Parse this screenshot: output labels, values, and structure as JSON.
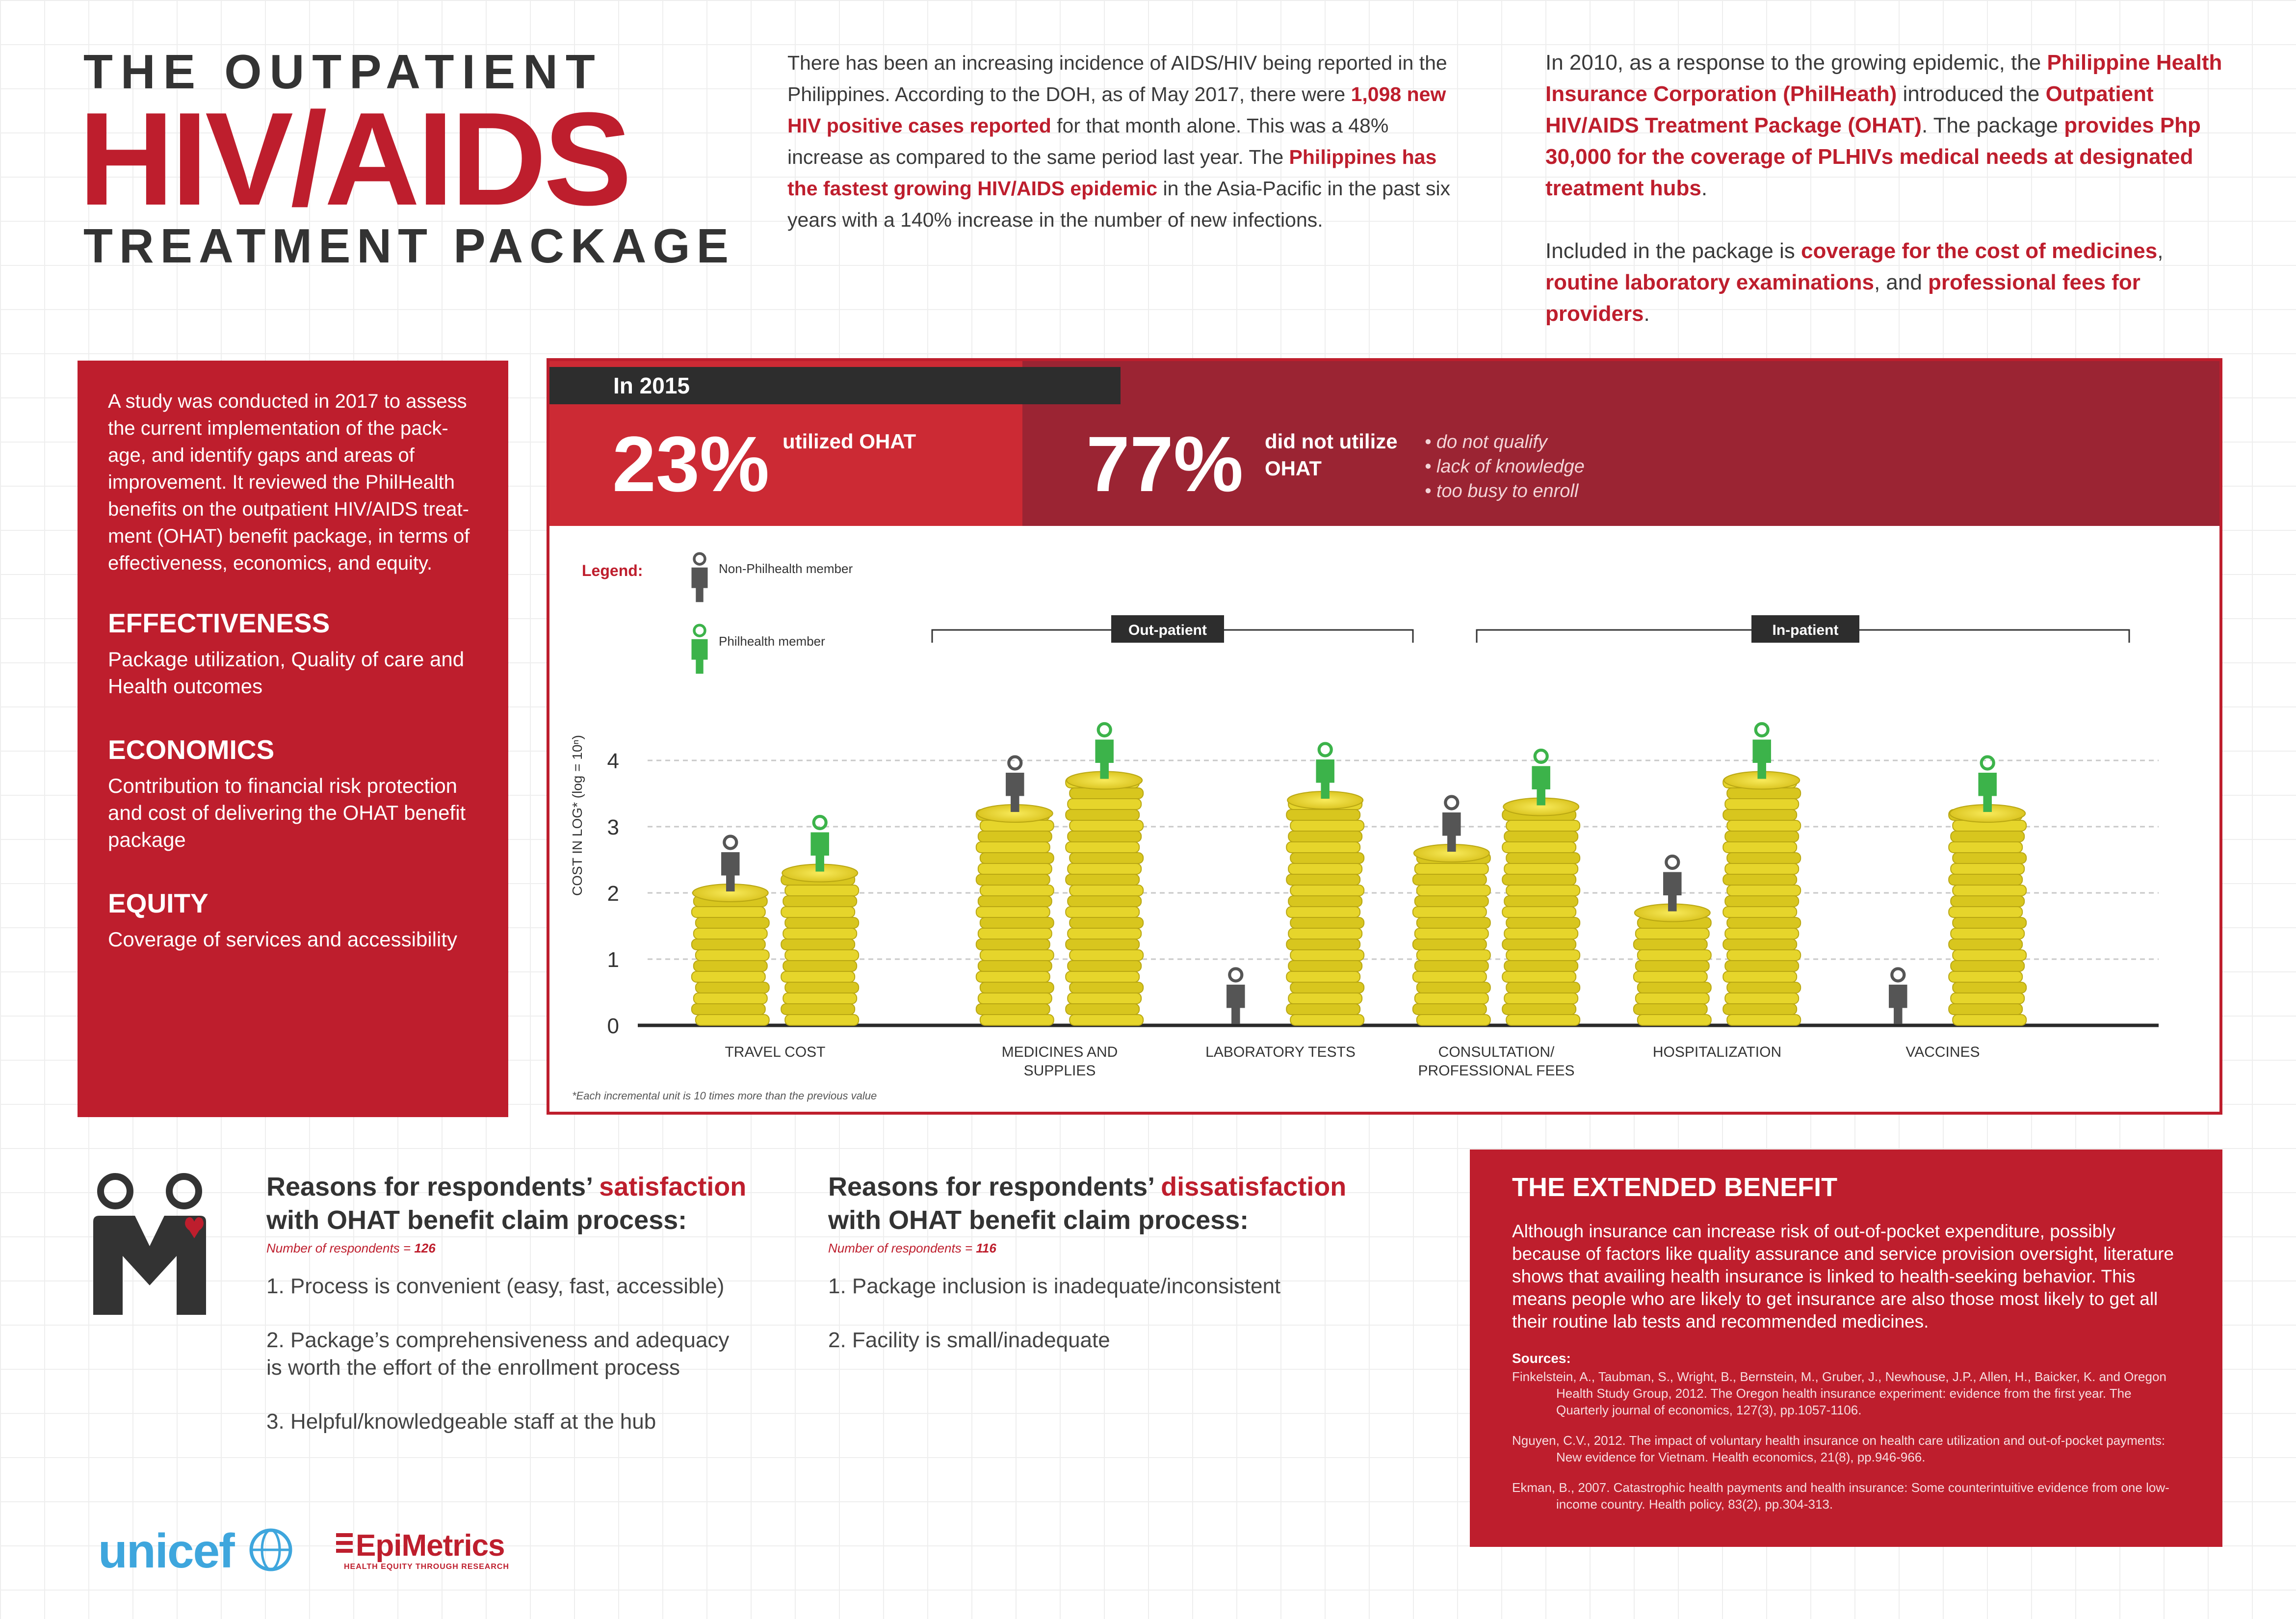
{
  "title": {
    "line1": "THE OUTPATIENT",
    "line2": "HIV/AIDS",
    "line3": "TREATMENT PACKAGE"
  },
  "intro": {
    "p1_a": "There has been an increasing incidence of AIDS/HIV being reported in the Philippines. According to the DOH, as of May 2017, there were ",
    "p1_b": "1,098 new HIV positive cases reported",
    "p1_c": " for that month alone. This was a 48% increase as compared to the same period last year. The ",
    "p1_d": "Philippines has the fastest growing HIV/AIDS epidemic",
    "p1_e": " in the Asia-Pacific in the past six years with a 140% increase in the number of new infections."
  },
  "intro2": {
    "a": "In 2010, as a response to the growing epidemic, the ",
    "b": "Philippine Health Insurance Corporation (PhilHeath)",
    "c": " introduced the ",
    "d": "Outpatient HIV/AIDS Treatment Package (OHAT)",
    "e": ". The package ",
    "f": "provides Php 30,000 for the coverage of PLHIVs medical needs at designated treatment hubs",
    "g": ".",
    "h": "Included in the package is ",
    "i": "coverage for the cost of medicines",
    "j": ", ",
    "k": "routine laboratory examinations",
    "l": ", and ",
    "m": "professional fees for providers",
    "n": "."
  },
  "study": {
    "desc": "A study was conducted in 2017 to assess the current implementation of the pack-age, and identify gaps and areas of improvement. It reviewed the PhilHealth benefits on the outpatient HIV/AIDS treat-ment (OHAT) benefit package, in terms of effectiveness, economics, and equity.",
    "sections": [
      {
        "heading": "EFFECTIVENESS",
        "text": "Package utilization, Quality of care and Health outcomes"
      },
      {
        "heading": "ECONOMICS",
        "text": "Contribution to financial risk protection and cost of delivering the OHAT benefit package"
      },
      {
        "heading": "EQUITY",
        "text": "Coverage of services and accessibility"
      }
    ]
  },
  "utilization": {
    "year": "In 2015",
    "utilized_pct": "23%",
    "utilized_label": "utilized OHAT",
    "not_utilized_pct": "77%",
    "not_utilized_label_1": "did not utilize",
    "not_utilized_label_2": "OHAT",
    "reasons": [
      "• do not qualify",
      "• lack of knowledge",
      "• too busy to enroll"
    ]
  },
  "chart_data": {
    "type": "bar",
    "ylabel": "COST IN LOG* (log = 10ⁿ)",
    "ylim": [
      0,
      4
    ],
    "yticks": [
      "0",
      "1",
      "2",
      "3",
      "4"
    ],
    "legend_title": "Legend:",
    "groups": [
      {
        "label": "Out-patient",
        "categories": [
          "MEDICINES AND SUPPLIES",
          "LABORATORY TESTS"
        ]
      },
      {
        "label": "In-patient",
        "categories": [
          "CONSULTATION/ PROFESSIONAL FEES",
          "HOSPITALIZATION",
          "VACCINES"
        ]
      }
    ],
    "categories": [
      "TRAVEL COST",
      "MEDICINES AND SUPPLIES",
      "LABORATORY TESTS",
      "CONSULTATION/ PROFESSIONAL FEES",
      "HOSPITALIZATION",
      "VACCINES"
    ],
    "series": [
      {
        "name": "Non-Philhealth member",
        "color": "#555555",
        "values": [
          2.0,
          3.2,
          0,
          2.6,
          1.7,
          0
        ]
      },
      {
        "name": "Philhealth member",
        "color": "#3cb34a",
        "values": [
          2.3,
          3.7,
          3.4,
          3.3,
          3.7,
          3.2
        ]
      }
    ],
    "footnote": "*Each incremental unit is 10 times more than the previous value"
  },
  "satisfaction": {
    "title_a": "Reasons for respondents’ ",
    "title_b": "satisfaction",
    "title_c": "with OHAT benefit claim process:",
    "respondents": "Number of respondents = ",
    "respondents_n": "126",
    "items": [
      "1. Process is convenient (easy, fast, accessible)",
      "2. Package’s comprehensiveness and adequacy is worth the effort of the enrollment process",
      "3. Helpful/knowledgeable staff at the hub"
    ]
  },
  "dissatisfaction": {
    "title_a": "Reasons for respondents’ ",
    "title_b": "dissatisfaction",
    "title_c": "with OHAT benefit claim process:",
    "respondents": "Number of respondents = ",
    "respondents_n": "116",
    "items": [
      "1. Package inclusion is inadequate/inconsistent",
      "2. Facility is small/inadequate"
    ]
  },
  "extended": {
    "heading": "THE EXTENDED BENEFIT",
    "text": "Although insurance can increase risk of out-of-pocket expenditure, possibly because of factors like quality assurance and service provision oversight, literature shows that availing health insurance is linked to health-seeking behavior. This means people who are likely to get insurance are also those most likely to get all their routine lab tests and recommended medicines.",
    "sources_label": "Sources:",
    "sources": [
      "Finkelstein, A., Taubman, S., Wright, B., Bernstein, M., Gruber, J., Newhouse, J.P., Allen, H., Baicker, K. and Oregon Health Study Group, 2012. The Oregon health insurance experiment: evidence from the first year. The Quarterly journal of economics, 127(3), pp.1057-1106.",
      "Nguyen, C.V., 2012. The impact of voluntary health insurance on health care utilization and out-of-pocket payments: New evidence for Vietnam. Health economics, 21(8), pp.946-966.",
      "Ekman, B., 2007. Catastrophic health payments and health insurance: Some counterintuitive evidence from one low-income country. Health policy, 83(2), pp.304-313."
    ]
  },
  "logos": {
    "unicef": "unicef",
    "epi": "EpiMetrics",
    "epi_tagline": "HEALTH EQUITY THROUGH RESEARCH"
  },
  "colors": {
    "accent": "#be1e2d",
    "coin": "#e8d628",
    "philhealth": "#3cb34a",
    "non_philhealth": "#555555"
  }
}
